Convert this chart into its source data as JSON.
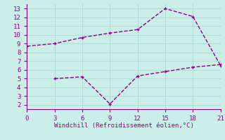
{
  "line1_x": [
    0,
    3,
    6,
    9,
    12,
    15,
    18,
    21
  ],
  "line1_y": [
    8.7,
    9.0,
    9.7,
    10.2,
    10.6,
    13.0,
    12.1,
    6.5
  ],
  "line2_x": [
    3,
    6,
    9,
    12,
    15,
    18,
    21
  ],
  "line2_y": [
    5.0,
    5.2,
    2.1,
    5.3,
    5.8,
    6.3,
    6.6
  ],
  "line_color": "#8b008b",
  "bg_color": "#cceee8",
  "xlabel": "Windchill (Refroidissement éolien,°C)",
  "xlim": [
    0,
    21
  ],
  "ylim": [
    1.5,
    13.5
  ],
  "xticks": [
    0,
    3,
    6,
    9,
    12,
    15,
    18,
    21
  ],
  "yticks": [
    2,
    3,
    4,
    5,
    6,
    7,
    8,
    9,
    10,
    11,
    12,
    13
  ],
  "grid_color": "#b0ddd6",
  "tick_color": "#8b008b",
  "label_color": "#8b008b",
  "markersize": 3.0,
  "linewidth": 1.0,
  "linestyle": "--"
}
